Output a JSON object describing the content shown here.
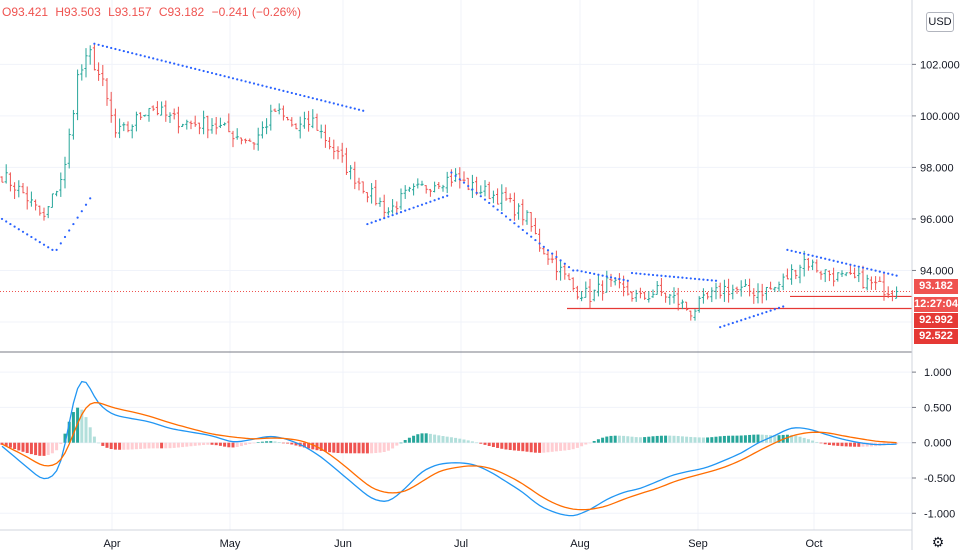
{
  "legend": {
    "open": "O93.421",
    "high": "H93.503",
    "low": "L93.157",
    "close": "C93.182",
    "change": "−0.241 (−0.26%)"
  },
  "currency_badge": "USD",
  "price_tags": {
    "last": "93.182",
    "countdown": "12:27:04",
    "level1": "92.992",
    "level2": "92.522"
  },
  "colors": {
    "up": "#26a69a",
    "down": "#ef5350",
    "psar": "#2962ff",
    "macd": "#2196f3",
    "signal": "#ff6d00",
    "hist_up_strong": "#26a69a",
    "hist_up_weak": "#b2dfdb",
    "hist_down_strong": "#ef5350",
    "hist_down_weak": "#ffcdd2",
    "grid": "#f0f3fa",
    "level_line": "#e53935"
  },
  "icons": {
    "settings": "gear-icon"
  },
  "chart_data": [
    {
      "type": "ohlc",
      "price_axis": {
        "ticks": [
          "102.000",
          "100.000",
          "98.000",
          "96.000",
          "94.000"
        ],
        "ylim": [
          91.3,
          103.8
        ]
      },
      "time_axis": {
        "labels": [
          "Apr",
          "May",
          "Jun",
          "Jul",
          "Aug",
          "Sep",
          "Oct"
        ]
      },
      "close_anchors": [
        [
          0,
          97.7
        ],
        [
          5,
          97.0
        ],
        [
          10,
          96.0
        ],
        [
          15,
          98.0
        ],
        [
          18,
          101.5
        ],
        [
          21,
          102.4
        ],
        [
          24,
          101.2
        ],
        [
          27,
          99.3
        ],
        [
          30,
          99.5
        ],
        [
          35,
          100.4
        ],
        [
          40,
          99.9
        ],
        [
          45,
          99.7
        ],
        [
          50,
          99.7
        ],
        [
          55,
          99.3
        ],
        [
          60,
          99.0
        ],
        [
          65,
          100.2
        ],
        [
          70,
          99.5
        ],
        [
          74,
          99.8
        ],
        [
          78,
          98.9
        ],
        [
          83,
          97.8
        ],
        [
          88,
          96.9
        ],
        [
          92,
          96.3
        ],
        [
          96,
          96.9
        ],
        [
          100,
          97.2
        ],
        [
          104,
          97.5
        ],
        [
          108,
          97.6
        ],
        [
          112,
          97.2
        ],
        [
          116,
          97.0
        ],
        [
          120,
          96.7
        ],
        [
          125,
          96.0
        ],
        [
          128,
          95.0
        ],
        [
          132,
          94.2
        ],
        [
          136,
          93.3
        ],
        [
          140,
          93.0
        ],
        [
          144,
          93.5
        ],
        [
          148,
          93.2
        ],
        [
          152,
          92.9
        ],
        [
          156,
          93.2
        ],
        [
          160,
          92.9
        ],
        [
          164,
          92.4
        ],
        [
          168,
          92.9
        ],
        [
          172,
          93.3
        ],
        [
          176,
          93.2
        ],
        [
          180,
          93.2
        ],
        [
          184,
          93.3
        ],
        [
          188,
          93.9
        ],
        [
          191,
          94.4
        ],
        [
          195,
          94.0
        ],
        [
          200,
          93.7
        ],
        [
          205,
          93.6
        ],
        [
          208,
          93.4
        ],
        [
          213,
          93.18
        ]
      ],
      "parabolic_sar": [
        {
          "bars": [
            0,
            12
          ],
          "levels": [
            96.0,
            94.8
          ]
        },
        {
          "bars": [
            13,
            21
          ],
          "levels": [
            94.8,
            96.8
          ]
        },
        {
          "bars": [
            22,
            86
          ],
          "levels": [
            102.8,
            100.2
          ]
        },
        {
          "bars": [
            87,
            106
          ],
          "levels": [
            95.8,
            96.9
          ]
        },
        {
          "bars": [
            107,
            136
          ],
          "levels": [
            97.8,
            94.0
          ]
        },
        {
          "bars": [
            137,
            149
          ],
          "levels": [
            94.0,
            93.6
          ]
        },
        {
          "bars": [
            150,
            170
          ],
          "levels": [
            93.9,
            93.6
          ]
        },
        {
          "bars": [
            171,
            186
          ],
          "levels": [
            91.8,
            92.6
          ]
        },
        {
          "bars": [
            187,
            213
          ],
          "levels": [
            94.8,
            93.8
          ]
        }
      ],
      "levels": [
        92.992,
        92.522
      ]
    },
    {
      "type": "macd",
      "ticks": [
        "1.000",
        "0.500",
        "0.000",
        "-0.500",
        "-1.000"
      ],
      "ylim": [
        -1.18,
        1.2
      ],
      "macd_anchors": [
        [
          0,
          -0.05
        ],
        [
          6,
          -0.35
        ],
        [
          10,
          -0.55
        ],
        [
          14,
          -0.4
        ],
        [
          16,
          0.3
        ],
        [
          18,
          0.9
        ],
        [
          20,
          0.95
        ],
        [
          22,
          0.6
        ],
        [
          26,
          0.4
        ],
        [
          30,
          0.35
        ],
        [
          35,
          0.3
        ],
        [
          40,
          0.2
        ],
        [
          45,
          0.15
        ],
        [
          50,
          0.1
        ],
        [
          55,
          0.0
        ],
        [
          60,
          0.05
        ],
        [
          64,
          0.1
        ],
        [
          68,
          0.05
        ],
        [
          72,
          -0.05
        ],
        [
          76,
          -0.2
        ],
        [
          80,
          -0.4
        ],
        [
          84,
          -0.6
        ],
        [
          88,
          -0.8
        ],
        [
          92,
          -0.85
        ],
        [
          96,
          -0.65
        ],
        [
          100,
          -0.4
        ],
        [
          104,
          -0.3
        ],
        [
          108,
          -0.28
        ],
        [
          112,
          -0.3
        ],
        [
          116,
          -0.4
        ],
        [
          120,
          -0.55
        ],
        [
          124,
          -0.7
        ],
        [
          128,
          -0.9
        ],
        [
          132,
          -1.0
        ],
        [
          136,
          -1.05
        ],
        [
          140,
          -0.95
        ],
        [
          144,
          -0.8
        ],
        [
          148,
          -0.7
        ],
        [
          152,
          -0.65
        ],
        [
          156,
          -0.55
        ],
        [
          160,
          -0.45
        ],
        [
          164,
          -0.4
        ],
        [
          168,
          -0.35
        ],
        [
          172,
          -0.25
        ],
        [
          176,
          -0.15
        ],
        [
          180,
          0.0
        ],
        [
          184,
          0.1
        ],
        [
          188,
          0.22
        ],
        [
          192,
          0.2
        ],
        [
          196,
          0.12
        ],
        [
          200,
          0.05
        ],
        [
          204,
          0.0
        ],
        [
          208,
          -0.03
        ],
        [
          213,
          -0.02
        ]
      ],
      "signal_anchors": [
        [
          0,
          -0.02
        ],
        [
          6,
          -0.2
        ],
        [
          10,
          -0.35
        ],
        [
          14,
          -0.3
        ],
        [
          16,
          -0.05
        ],
        [
          18,
          0.3
        ],
        [
          20,
          0.55
        ],
        [
          22,
          0.6
        ],
        [
          26,
          0.5
        ],
        [
          30,
          0.45
        ],
        [
          35,
          0.38
        ],
        [
          40,
          0.28
        ],
        [
          45,
          0.2
        ],
        [
          50,
          0.12
        ],
        [
          55,
          0.08
        ],
        [
          60,
          0.05
        ],
        [
          64,
          0.07
        ],
        [
          68,
          0.06
        ],
        [
          72,
          0.02
        ],
        [
          76,
          -0.08
        ],
        [
          80,
          -0.25
        ],
        [
          84,
          -0.45
        ],
        [
          88,
          -0.65
        ],
        [
          92,
          -0.72
        ],
        [
          96,
          -0.7
        ],
        [
          100,
          -0.55
        ],
        [
          104,
          -0.4
        ],
        [
          108,
          -0.35
        ],
        [
          112,
          -0.32
        ],
        [
          116,
          -0.35
        ],
        [
          120,
          -0.45
        ],
        [
          124,
          -0.58
        ],
        [
          128,
          -0.75
        ],
        [
          132,
          -0.88
        ],
        [
          136,
          -0.95
        ],
        [
          140,
          -0.95
        ],
        [
          144,
          -0.9
        ],
        [
          148,
          -0.8
        ],
        [
          152,
          -0.72
        ],
        [
          156,
          -0.65
        ],
        [
          160,
          -0.55
        ],
        [
          164,
          -0.48
        ],
        [
          168,
          -0.42
        ],
        [
          172,
          -0.35
        ],
        [
          176,
          -0.25
        ],
        [
          180,
          -0.12
        ],
        [
          184,
          0.0
        ],
        [
          188,
          0.1
        ],
        [
          192,
          0.15
        ],
        [
          196,
          0.15
        ],
        [
          200,
          0.1
        ],
        [
          204,
          0.06
        ],
        [
          208,
          0.02
        ],
        [
          213,
          0.0
        ]
      ]
    }
  ]
}
